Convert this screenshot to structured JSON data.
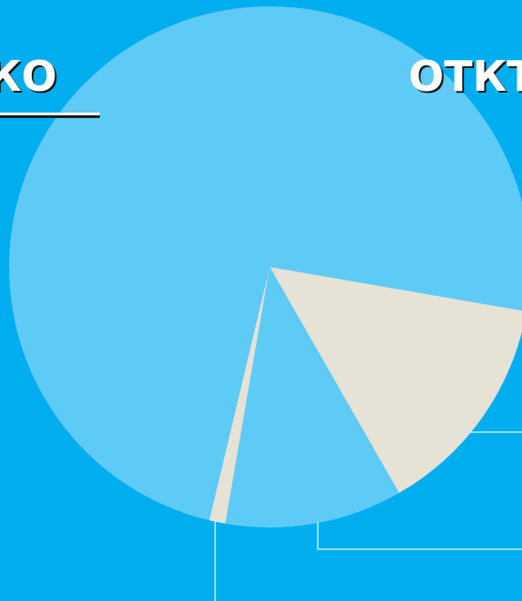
{
  "chart_data": {
    "type": "pie",
    "tabs": [
      "КО",
      "ОТКТ"
    ],
    "categories": [
      null,
      null,
      null,
      null
    ],
    "values": [
      14,
      11,
      1,
      74
    ],
    "colors": [
      "#e6e2d6",
      "#5ecbf6",
      "#e6e2d6",
      "#5ecbf6"
    ]
  }
}
